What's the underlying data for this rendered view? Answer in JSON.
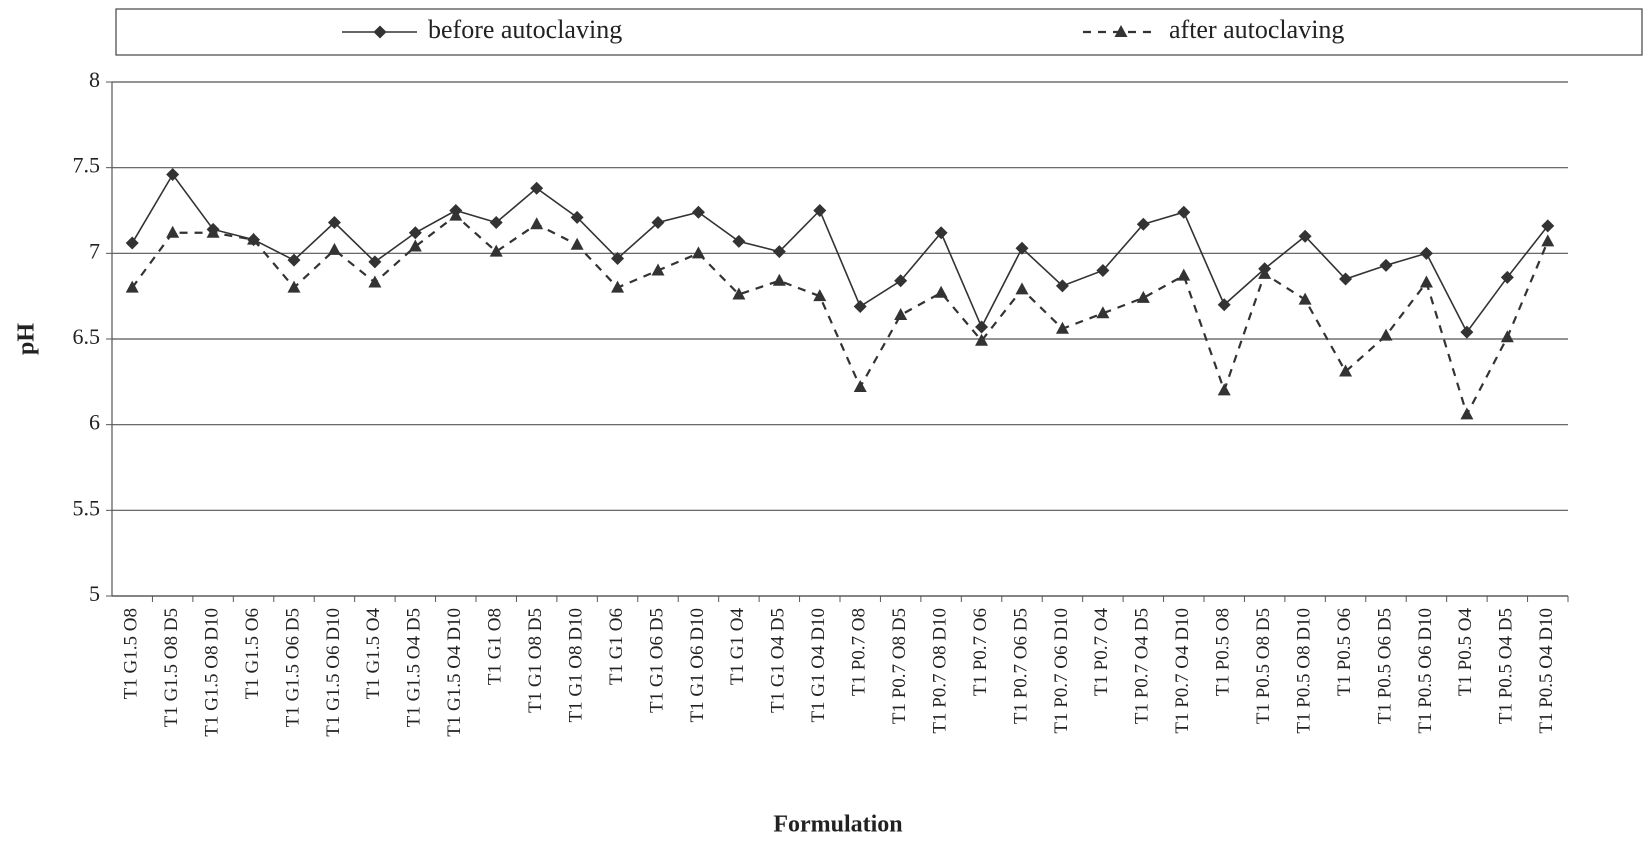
{
  "chart_data": {
    "type": "line",
    "x_label": "Formulation",
    "y_label": "pH",
    "categories": [
      "T1 G1.5 O8",
      "T1 G1.5 O8 D5",
      "T1 G1.5 O8 D10",
      "T1 G1.5 O6",
      "T1 G1.5 O6 D5",
      "T1 G1.5 O6 D10",
      "T1 G1.5 O4",
      "T1 G1.5 O4 D5",
      "T1 G1.5 O4 D10",
      "T1 G1 O8",
      "T1 G1 O8 D5",
      "T1 G1 O8 D10",
      "T1 G1 O6",
      "T1 G1 O6 D5",
      "T1 G1 O6 D10",
      "T1 G1 O4",
      "T1 G1 O4 D5",
      "T1 G1 O4 D10",
      "T1 P0.7 O8",
      "T1 P0.7 O8 D5",
      "T1 P0.7 O8 D10",
      "T1 P0.7 O6",
      "T1 P0.7 O6 D5",
      "T1 P0.7 O6 D10",
      "T1 P0.7 O4",
      "T1 P0.7 O4 D5",
      "T1 P0.7 O4 D10",
      "T1 P0.5 O8",
      "T1 P0.5 O8 D5",
      "T1 P0.5 O8 D10",
      "T1 P0.5 O6",
      "T1 P0.5 O6 D5",
      "T1 P0.5 O6 D10",
      "T1 P0.5 O4",
      "T1 P0.5 O4 D5",
      "T1 P0.5 O4 D10"
    ],
    "series": [
      {
        "name": "before autoclaving",
        "color": "#333333",
        "marker": "diamond",
        "dash": false,
        "values": [
          7.06,
          7.46,
          7.14,
          7.08,
          6.96,
          7.18,
          6.95,
          7.12,
          7.25,
          7.18,
          7.38,
          7.21,
          6.97,
          7.18,
          7.24,
          7.07,
          7.01,
          7.25,
          6.69,
          6.84,
          7.12,
          6.57,
          7.03,
          6.81,
          6.9,
          7.17,
          7.24,
          6.7,
          6.91,
          7.1,
          6.85,
          6.93,
          7.0,
          6.54,
          6.86,
          7.16
        ]
      },
      {
        "name": "after autoclaving",
        "color": "#333333",
        "marker": "triangle",
        "dash": true,
        "values": [
          6.8,
          7.12,
          7.12,
          7.08,
          6.8,
          7.02,
          6.83,
          7.04,
          7.22,
          7.01,
          7.17,
          7.05,
          6.8,
          6.9,
          7.0,
          6.76,
          6.84,
          6.75,
          6.22,
          6.64,
          6.77,
          6.49,
          6.79,
          6.56,
          6.65,
          6.74,
          6.87,
          6.2,
          6.88,
          6.73,
          6.31,
          6.52,
          6.83,
          6.06,
          6.51,
          7.07
        ]
      }
    ],
    "ylim": [
      5,
      8
    ],
    "yticks": [
      5,
      5.5,
      6,
      6.5,
      7,
      7.5,
      8
    ],
    "grid": true,
    "legend": "top"
  }
}
